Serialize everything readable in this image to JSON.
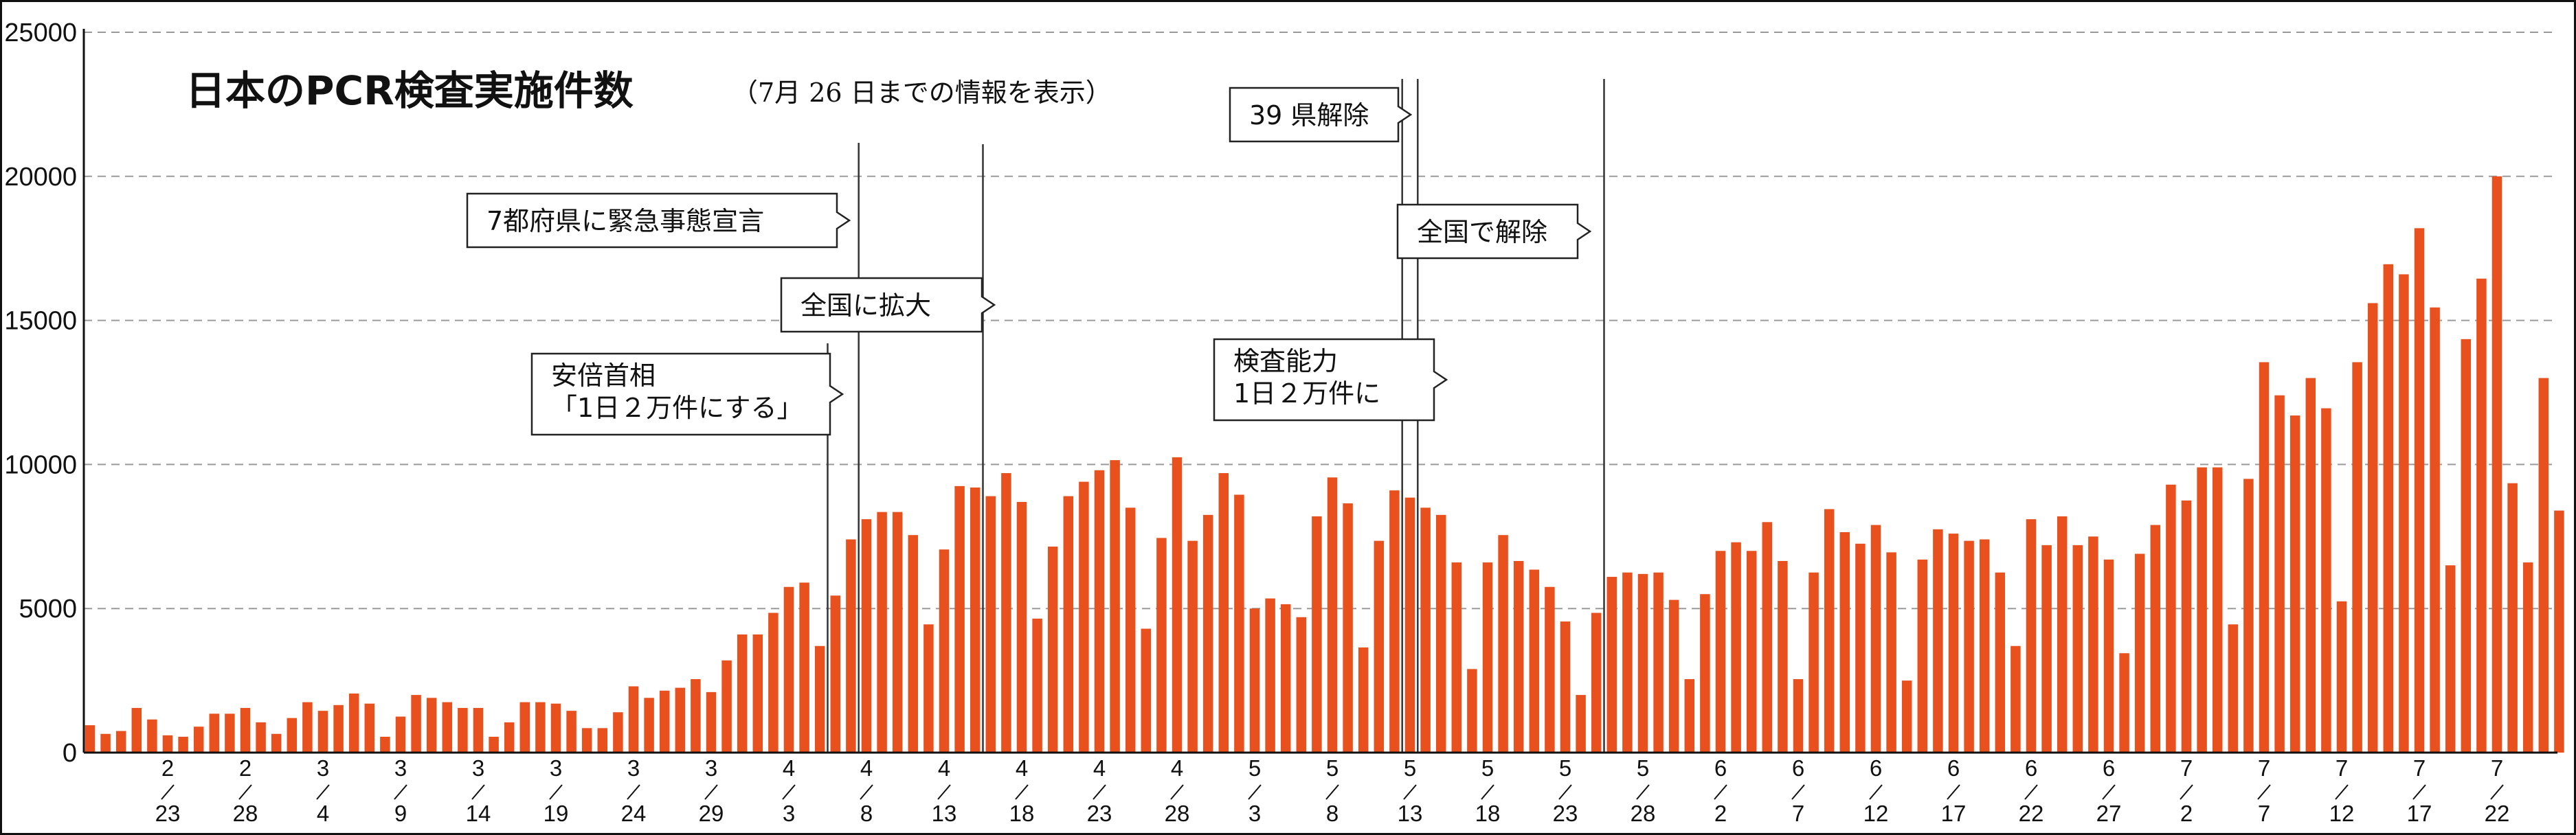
{
  "chart_data": {
    "type": "bar",
    "title": "日本のPCR検査実施件数",
    "subtitle": "（7月 26 日までの情報を表示）",
    "xlabel": "",
    "ylabel": "",
    "ylim": [
      0,
      25000
    ],
    "yticks": [
      0,
      5000,
      10000,
      15000,
      20000,
      25000
    ],
    "grid": "horizontal dashed",
    "bar_color": "#e8501e",
    "start_date": "2020-02-18",
    "x_tick_labels": [
      {
        "month": "2",
        "day": "23",
        "bar_index": 5
      },
      {
        "month": "2",
        "day": "28",
        "bar_index": 10
      },
      {
        "month": "3",
        "day": "4",
        "bar_index": 15
      },
      {
        "month": "3",
        "day": "9",
        "bar_index": 20
      },
      {
        "month": "3",
        "day": "14",
        "bar_index": 25
      },
      {
        "month": "3",
        "day": "19",
        "bar_index": 30
      },
      {
        "month": "3",
        "day": "24",
        "bar_index": 35
      },
      {
        "month": "3",
        "day": "29",
        "bar_index": 40
      },
      {
        "month": "4",
        "day": "3",
        "bar_index": 45
      },
      {
        "month": "4",
        "day": "8",
        "bar_index": 50
      },
      {
        "month": "4",
        "day": "13",
        "bar_index": 55
      },
      {
        "month": "4",
        "day": "18",
        "bar_index": 60
      },
      {
        "month": "4",
        "day": "23",
        "bar_index": 65
      },
      {
        "month": "4",
        "day": "28",
        "bar_index": 70
      },
      {
        "month": "5",
        "day": "3",
        "bar_index": 75
      },
      {
        "month": "5",
        "day": "8",
        "bar_index": 80
      },
      {
        "month": "5",
        "day": "13",
        "bar_index": 85
      },
      {
        "month": "5",
        "day": "18",
        "bar_index": 90
      },
      {
        "month": "5",
        "day": "23",
        "bar_index": 95
      },
      {
        "month": "5",
        "day": "28",
        "bar_index": 100
      },
      {
        "month": "6",
        "day": "2",
        "bar_index": 105
      },
      {
        "month": "6",
        "day": "7",
        "bar_index": 110
      },
      {
        "month": "6",
        "day": "12",
        "bar_index": 115
      },
      {
        "month": "6",
        "day": "17",
        "bar_index": 120
      },
      {
        "month": "6",
        "day": "22",
        "bar_index": 125
      },
      {
        "month": "6",
        "day": "27",
        "bar_index": 130
      },
      {
        "month": "7",
        "day": "2",
        "bar_index": 135
      },
      {
        "month": "7",
        "day": "7",
        "bar_index": 140
      },
      {
        "month": "7",
        "day": "12",
        "bar_index": 145
      },
      {
        "month": "7",
        "day": "17",
        "bar_index": 150
      },
      {
        "month": "7",
        "day": "22",
        "bar_index": 155
      }
    ],
    "values": [
      950,
      650,
      750,
      1550,
      1150,
      600,
      550,
      900,
      1350,
      1350,
      1550,
      1050,
      650,
      1200,
      1750,
      1450,
      1650,
      2050,
      1700,
      550,
      1250,
      2000,
      1900,
      1750,
      1550,
      1550,
      550,
      1050,
      1750,
      1750,
      1700,
      1450,
      850,
      850,
      1400,
      2300,
      1900,
      2150,
      2250,
      2550,
      2100,
      3200,
      4100,
      4100,
      4850,
      5750,
      5900,
      3700,
      5450,
      7400,
      8100,
      8350,
      8350,
      7550,
      4450,
      7050,
      9250,
      9200,
      8900,
      9700,
      8700,
      4650,
      7150,
      8900,
      9400,
      9800,
      10150,
      8500,
      4300,
      7450,
      10250,
      7350,
      8250,
      9700,
      8950,
      5000,
      5350,
      5150,
      4700,
      8200,
      9550,
      8650,
      3650,
      7350,
      9100,
      8850,
      8500,
      8250,
      6600,
      2900,
      6600,
      7550,
      6650,
      6350,
      5750,
      4550,
      2000,
      4850,
      6100,
      6250,
      6200,
      6250,
      5300,
      2550,
      5500,
      7000,
      7300,
      7000,
      8000,
      6650,
      2550,
      6250,
      8450,
      7650,
      7250,
      7900,
      6950,
      2500,
      6700,
      7750,
      7600,
      7350,
      7400,
      6250,
      3700,
      8100,
      7200,
      8200,
      7200,
      7500,
      6700,
      3450,
      6900,
      7900,
      9300,
      8750,
      9900,
      9900,
      4450,
      9500,
      13550,
      12400,
      11700,
      13000,
      11950,
      5250,
      13550,
      15600,
      16950,
      16600,
      18200,
      15450,
      6500,
      14350,
      16450,
      20000,
      9350,
      6600,
      13000,
      8400
    ],
    "annotations": [
      {
        "lines": [
          "39 県解除"
        ],
        "bar_index": 86
      },
      {
        "lines": [
          "7都府県に緊急事態宣言"
        ],
        "bar_index": 50
      },
      {
        "lines": [
          "全国で解除"
        ],
        "bar_index": 98
      },
      {
        "lines": [
          "全国に拡大"
        ],
        "bar_index": 58
      },
      {
        "lines": [
          "安倍首相",
          "「1日２万件にする」"
        ],
        "bar_index": 48
      },
      {
        "lines": [
          "検査能力",
          "1日２万件に"
        ],
        "bar_index": 85
      }
    ]
  }
}
